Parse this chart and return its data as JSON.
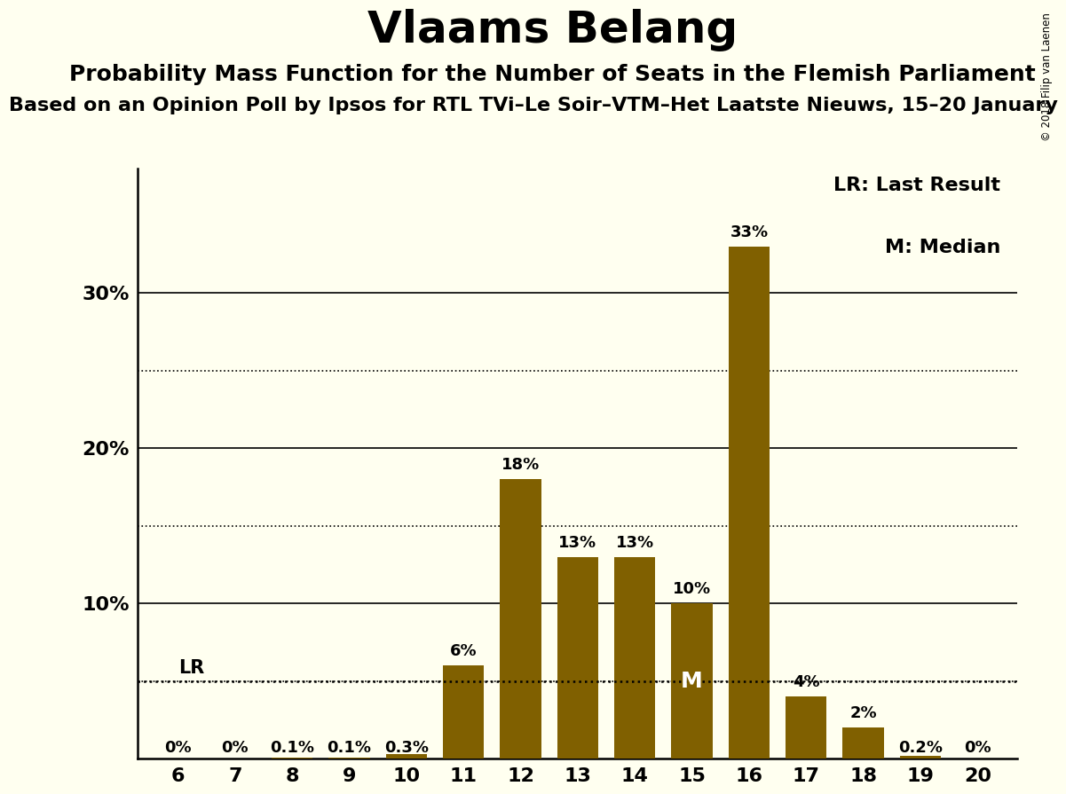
{
  "title": "Vlaams Belang",
  "subtitle1": "Probability Mass Function for the Number of Seats in the Flemish Parliament",
  "subtitle2": "Based on an Opinion Poll by Ipsos for RTL TVi–Le Soir–VTM–Het Laatste Nieuws, 15–20 January",
  "copyright": "© 2018 Filip van Laenen",
  "categories": [
    6,
    7,
    8,
    9,
    10,
    11,
    12,
    13,
    14,
    15,
    16,
    17,
    18,
    19,
    20
  ],
  "values": [
    0.0,
    0.0,
    0.001,
    0.001,
    0.003,
    0.06,
    0.18,
    0.13,
    0.13,
    0.1,
    0.33,
    0.04,
    0.02,
    0.002,
    0.0
  ],
  "labels": [
    "0%",
    "0%",
    "0.1%",
    "0.1%",
    "0.3%",
    "6%",
    "18%",
    "13%",
    "13%",
    "10%",
    "33%",
    "4%",
    "2%",
    "0.2%",
    "0%"
  ],
  "bar_color": "#806000",
  "background_color": "#fffff0",
  "lr_value": 0.05,
  "median_seat": 15,
  "dotted_yticks": [
    0.05,
    0.15,
    0.25
  ],
  "solid_yticks": [
    0.1,
    0.2,
    0.3
  ],
  "ytick_labels": [
    "10%",
    "20%",
    "30%"
  ],
  "legend_lr": "LR: Last Result",
  "legend_m": "M: Median",
  "title_fontsize": 36,
  "subtitle1_fontsize": 18,
  "subtitle2_fontsize": 16,
  "label_fontsize": 13,
  "axis_fontsize": 16,
  "legend_fontsize": 16,
  "ylim_max": 0.38
}
